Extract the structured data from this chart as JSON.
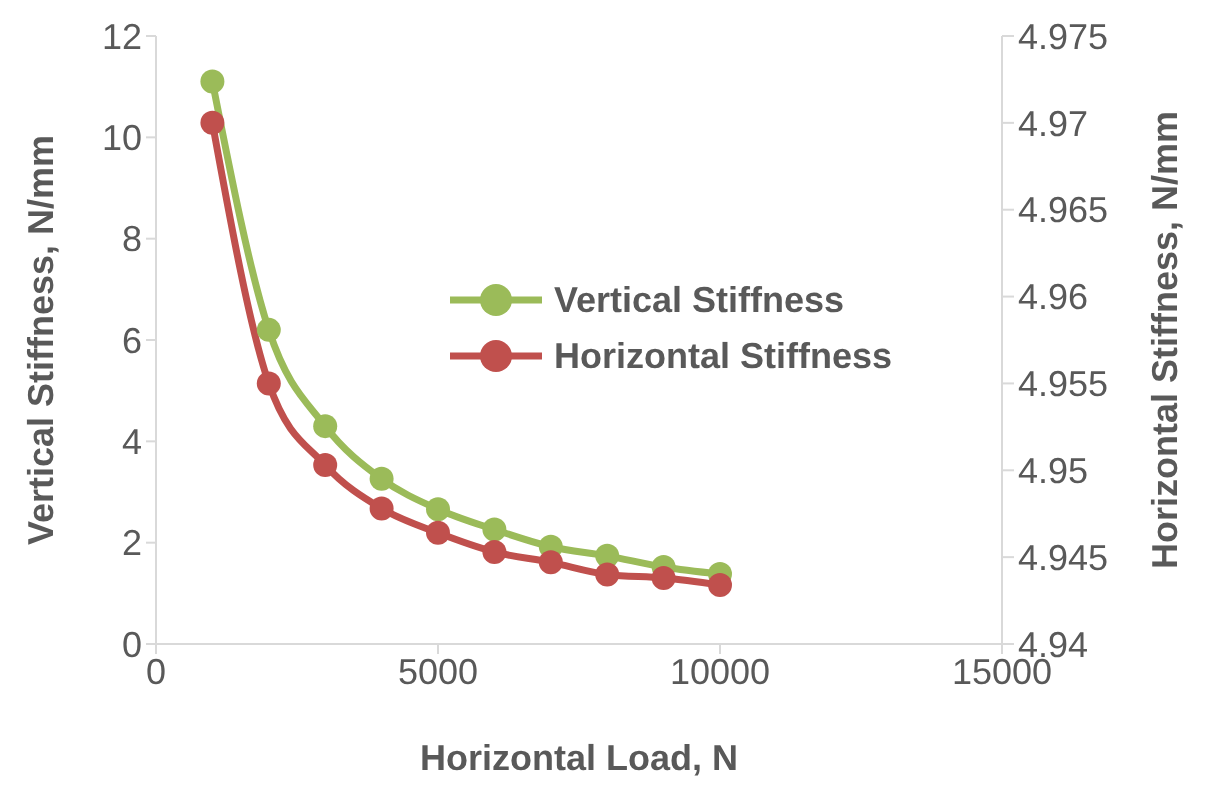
{
  "chart_data": {
    "type": "line",
    "xlabel": "Horizontal  Load, N",
    "ylabel": "Vertical Stiffness, N/mm",
    "y2label": "Horizontal  Stiffness, N/mm",
    "x": [
      1000,
      2000,
      3000,
      4000,
      5000,
      6000,
      7000,
      8000,
      9000,
      10000
    ],
    "xlim": [
      0,
      15000
    ],
    "xticks": [
      0,
      5000,
      10000,
      15000
    ],
    "ylim": [
      0,
      12
    ],
    "yticks": [
      0,
      2,
      4,
      6,
      8,
      10,
      12
    ],
    "y2lim": [
      4.94,
      4.975
    ],
    "y2ticks": [
      4.94,
      4.945,
      4.95,
      4.955,
      4.96,
      4.965,
      4.97,
      4.975
    ],
    "series": [
      {
        "name": "Vertical Stiffness",
        "color": "#9bbb59",
        "values": [
          11.1,
          6.2,
          4.3,
          3.26,
          2.66,
          2.26,
          1.92,
          1.74,
          1.52,
          1.38
        ]
      },
      {
        "name": "Horizontal Stiffness",
        "color": "#c0504d",
        "axis": "y2",
        "values": [
          4.97,
          4.955,
          4.9503,
          4.9478,
          4.9464,
          4.9453,
          4.9447,
          4.944,
          4.9438,
          4.9434
        ]
      }
    ],
    "grid": false,
    "legend": "right",
    "marker": "circle",
    "line_style": "solid"
  }
}
